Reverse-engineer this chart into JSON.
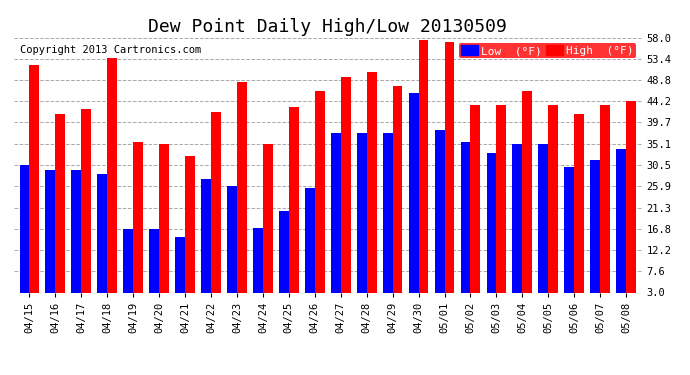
{
  "title": "Dew Point Daily High/Low 20130509",
  "copyright": "Copyright 2013 Cartronics.com",
  "legend_low": "Low  (°F)",
  "legend_high": "High  (°F)",
  "yticks": [
    3.0,
    7.6,
    12.2,
    16.8,
    21.3,
    25.9,
    30.5,
    35.1,
    39.7,
    44.2,
    48.8,
    53.4,
    58.0
  ],
  "ylim": [
    3.0,
    58.0
  ],
  "categories": [
    "04/15",
    "04/16",
    "04/17",
    "04/18",
    "04/19",
    "04/20",
    "04/21",
    "04/22",
    "04/23",
    "04/24",
    "04/25",
    "04/26",
    "04/27",
    "04/28",
    "04/29",
    "04/30",
    "05/01",
    "05/02",
    "05/03",
    "05/04",
    "05/05",
    "05/06",
    "05/07",
    "05/08"
  ],
  "low_values": [
    30.5,
    29.5,
    29.5,
    28.5,
    16.8,
    16.8,
    15.0,
    27.5,
    25.9,
    17.0,
    20.5,
    25.5,
    37.5,
    37.5,
    37.5,
    46.0,
    38.0,
    35.5,
    33.0,
    35.0,
    35.0,
    30.0,
    31.5,
    34.0
  ],
  "high_values": [
    52.0,
    41.5,
    42.5,
    53.5,
    35.5,
    35.0,
    32.5,
    42.0,
    48.5,
    35.0,
    43.0,
    46.5,
    49.5,
    50.5,
    47.5,
    57.5,
    57.0,
    43.5,
    43.5,
    46.5,
    43.5,
    41.5,
    43.5,
    44.2
  ],
  "low_color": "#0000ff",
  "high_color": "#ff0000",
  "bg_color": "#ffffff",
  "grid_color": "#aaaaaa",
  "bar_width": 0.38,
  "title_fontsize": 13,
  "tick_fontsize": 7.5,
  "legend_fontsize": 8,
  "copyright_fontsize": 7.5
}
